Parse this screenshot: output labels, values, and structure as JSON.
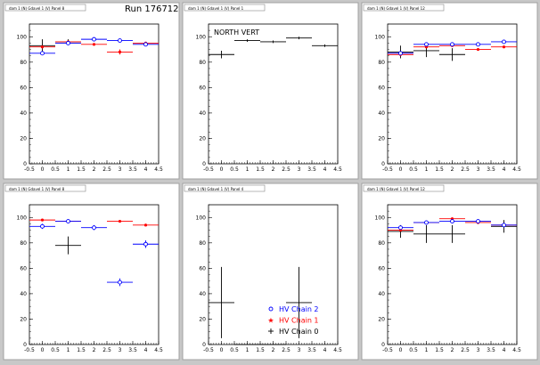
{
  "run_label": "Run 176712",
  "colors": {
    "chain2": "#0000ff",
    "chain1": "#ff0000",
    "chain0": "#000000",
    "background": "#c8c8c8",
    "pad": "#ffffff"
  },
  "legend": {
    "entries": [
      {
        "label": "HV Chain 2",
        "color": "#0000ff",
        "marker": "open-circle"
      },
      {
        "label": "HV Chain 1",
        "color": "#ff0000",
        "marker": "star"
      },
      {
        "label": "HV Chain 0",
        "color": "#000000",
        "marker": "cross"
      }
    ]
  },
  "chart_data": [
    {
      "type": "scatter",
      "title": "dam 1 (N) Gdavel 1 (V) Panel 8",
      "annotation": "",
      "xlim": [
        -0.5,
        4.5
      ],
      "ylim": [
        0,
        110
      ],
      "xticks": [
        "-0.5",
        "0",
        "0.5",
        "1",
        "1.5",
        "2",
        "2.5",
        "3",
        "3.5",
        "4",
        "4.5"
      ],
      "yticks": [
        "0",
        "20",
        "40",
        "60",
        "80",
        "100"
      ],
      "series": [
        {
          "color": "#000000",
          "points": [
            {
              "x": 0,
              "y": 93,
              "yerr": 5
            },
            {
              "x": 1,
              "y": 96,
              "yerr": 2
            }
          ]
        },
        {
          "color": "#ff0000",
          "points": [
            {
              "x": 0,
              "y": 92,
              "yerr": 1
            },
            {
              "x": 1,
              "y": 96,
              "yerr": 1
            },
            {
              "x": 2,
              "y": 94,
              "yerr": 1
            },
            {
              "x": 3,
              "y": 88,
              "yerr": 2
            },
            {
              "x": 4,
              "y": 95,
              "yerr": 1
            }
          ]
        },
        {
          "color": "#0000ff",
          "points": [
            {
              "x": 0,
              "y": 87,
              "yerr": 1
            },
            {
              "x": 1,
              "y": 95,
              "yerr": 1
            },
            {
              "x": 2,
              "y": 98,
              "yerr": 1
            },
            {
              "x": 3,
              "y": 97,
              "yerr": 1
            },
            {
              "x": 4,
              "y": 94,
              "yerr": 1
            }
          ]
        }
      ]
    },
    {
      "type": "scatter",
      "title": "dam 1 (N) Gdavel 1 (V) Panel 1",
      "annotation": "NORTH VERT",
      "xlim": [
        -0.5,
        4.5
      ],
      "ylim": [
        0,
        110
      ],
      "xticks": [
        "-0.5",
        "0",
        "0.5",
        "1",
        "1.5",
        "2",
        "2.5",
        "3",
        "3.5",
        "4",
        "4.5"
      ],
      "yticks": [
        "0",
        "20",
        "40",
        "60",
        "80",
        "100"
      ],
      "series": [
        {
          "color": "#000000",
          "points": [
            {
              "x": 0,
              "y": 86,
              "yerr": 3
            },
            {
              "x": 1,
              "y": 97,
              "yerr": 1
            },
            {
              "x": 2,
              "y": 96,
              "yerr": 1
            },
            {
              "x": 3,
              "y": 99,
              "yerr": 1
            },
            {
              "x": 4,
              "y": 93,
              "yerr": 1
            }
          ]
        }
      ]
    },
    {
      "type": "scatter",
      "title": "dam 1 (N) Gdavel 1 (V) Panel 12",
      "annotation": "",
      "xlim": [
        -0.5,
        4.5
      ],
      "ylim": [
        0,
        110
      ],
      "xticks": [
        "-0.5",
        "0",
        "0.5",
        "1",
        "1.5",
        "2",
        "2.5",
        "3",
        "3.5",
        "4",
        "4.5"
      ],
      "yticks": [
        "0",
        "20",
        "40",
        "60",
        "80",
        "100"
      ],
      "series": [
        {
          "color": "#000000",
          "points": [
            {
              "x": 0,
              "y": 88,
              "yerr": 5
            },
            {
              "x": 1,
              "y": 89,
              "yerr": 5
            },
            {
              "x": 2,
              "y": 86,
              "yerr": 5
            }
          ]
        },
        {
          "color": "#ff0000",
          "points": [
            {
              "x": 0,
              "y": 86,
              "yerr": 1
            },
            {
              "x": 1,
              "y": 92,
              "yerr": 1
            },
            {
              "x": 2,
              "y": 93,
              "yerr": 1
            },
            {
              "x": 3,
              "y": 90,
              "yerr": 1
            },
            {
              "x": 4,
              "y": 92,
              "yerr": 1
            }
          ]
        },
        {
          "color": "#0000ff",
          "points": [
            {
              "x": 0,
              "y": 87,
              "yerr": 1
            },
            {
              "x": 1,
              "y": 94,
              "yerr": 1
            },
            {
              "x": 2,
              "y": 94,
              "yerr": 1
            },
            {
              "x": 3,
              "y": 94,
              "yerr": 1
            },
            {
              "x": 4,
              "y": 96,
              "yerr": 1
            }
          ]
        }
      ]
    },
    {
      "type": "scatter",
      "title": "dam 1 (N) Gdavel 1 (V) Panel 8",
      "annotation": "",
      "xlim": [
        -0.5,
        4.5
      ],
      "ylim": [
        0,
        110
      ],
      "xticks": [
        "-0.5",
        "0",
        "0.5",
        "1",
        "1.5",
        "2",
        "2.5",
        "3",
        "3.5",
        "4",
        "4.5"
      ],
      "yticks": [
        "0",
        "20",
        "40",
        "60",
        "80",
        "100"
      ],
      "series": [
        {
          "color": "#000000",
          "points": [
            {
              "x": 1,
              "y": 78,
              "yerr": 7
            }
          ]
        },
        {
          "color": "#ff0000",
          "points": [
            {
              "x": 0,
              "y": 98,
              "yerr": 1
            },
            {
              "x": 1,
              "y": 97,
              "yerr": 1
            },
            {
              "x": 3,
              "y": 97,
              "yerr": 1
            },
            {
              "x": 4,
              "y": 94,
              "yerr": 1
            }
          ]
        },
        {
          "color": "#0000ff",
          "points": [
            {
              "x": 0,
              "y": 93,
              "yerr": 2
            },
            {
              "x": 1,
              "y": 97,
              "yerr": 1
            },
            {
              "x": 2,
              "y": 92,
              "yerr": 2
            },
            {
              "x": 3,
              "y": 49,
              "yerr": 3
            },
            {
              "x": 4,
              "y": 79,
              "yerr": 3
            }
          ]
        }
      ]
    },
    {
      "type": "scatter",
      "title": "dam 1 (N) Gdavel 1 (V) Panel 4",
      "annotation": "",
      "xlim": [
        -0.5,
        4.5
      ],
      "ylim": [
        0,
        110
      ],
      "xticks": [
        "-0.5",
        "0",
        "0.5",
        "1",
        "1.5",
        "2",
        "2.5",
        "3",
        "3.5",
        "4",
        "4.5"
      ],
      "yticks": [
        "0",
        "20",
        "40",
        "60",
        "80",
        "100"
      ],
      "series": [
        {
          "color": "#000000",
          "points": [
            {
              "x": 0,
              "y": 33,
              "yerr": 28
            },
            {
              "x": 1,
              "y": 0,
              "yerr": 0
            },
            {
              "x": 2,
              "y": 0,
              "yerr": 0
            },
            {
              "x": 3,
              "y": 33,
              "yerr": 28
            }
          ]
        }
      ],
      "show_legend": true
    },
    {
      "type": "scatter",
      "title": "dam 1 (N) Gdavel 1 (V) Panel 12",
      "annotation": "",
      "xlim": [
        -0.5,
        4.5
      ],
      "ylim": [
        0,
        110
      ],
      "xticks": [
        "-0.5",
        "0",
        "0.5",
        "1",
        "1.5",
        "2",
        "2.5",
        "3",
        "3.5",
        "4",
        "4.5"
      ],
      "yticks": [
        "0",
        "20",
        "40",
        "60",
        "80",
        "100"
      ],
      "series": [
        {
          "color": "#000000",
          "points": [
            {
              "x": 0,
              "y": 89,
              "yerr": 5
            },
            {
              "x": 1,
              "y": 87,
              "yerr": 7
            },
            {
              "x": 2,
              "y": 87,
              "yerr": 7
            },
            {
              "x": 4,
              "y": 93,
              "yerr": 5
            }
          ]
        },
        {
          "color": "#ff0000",
          "points": [
            {
              "x": 0,
              "y": 90,
              "yerr": 1
            },
            {
              "x": 1,
              "y": 96,
              "yerr": 1
            },
            {
              "x": 2,
              "y": 99,
              "yerr": 1
            },
            {
              "x": 3,
              "y": 96,
              "yerr": 1
            },
            {
              "x": 4,
              "y": 94,
              "yerr": 1
            }
          ]
        },
        {
          "color": "#0000ff",
          "points": [
            {
              "x": 0,
              "y": 92,
              "yerr": 1
            },
            {
              "x": 1,
              "y": 96,
              "yerr": 1
            },
            {
              "x": 2,
              "y": 97,
              "yerr": 1
            },
            {
              "x": 3,
              "y": 97,
              "yerr": 1
            },
            {
              "x": 4,
              "y": 94,
              "yerr": 1
            }
          ]
        }
      ]
    }
  ]
}
